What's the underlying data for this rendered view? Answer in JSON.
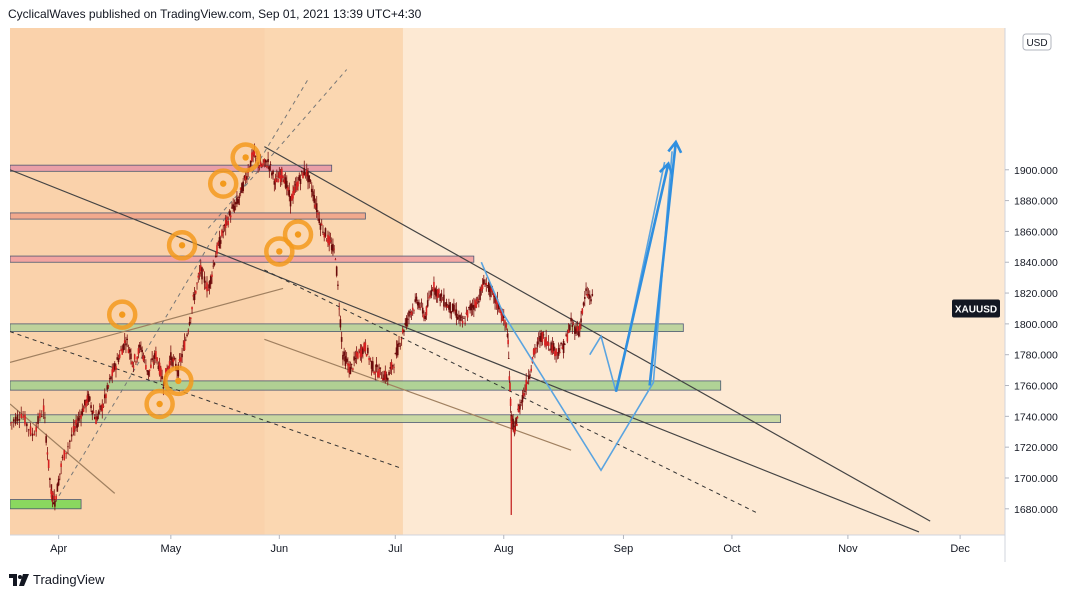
{
  "header": {
    "publisher": "CyclicalWaves",
    "published_on": "published on TradingView.com, Sep 01, 2021 13:39 UTC+4:30"
  },
  "footer": {
    "brand": "TradingView"
  },
  "chart_data": {
    "type": "candlestick",
    "symbol": "XAUUSD",
    "currency": "USD",
    "ylim": [
      1663,
      1992
    ],
    "y_ticks": [
      1680,
      1700,
      1720,
      1740,
      1760,
      1780,
      1800,
      1820,
      1840,
      1860,
      1880,
      1900
    ],
    "y_tick_labels": [
      "1680.000",
      "1700.000",
      "1720.000",
      "1740.000",
      "1760.000",
      "1780.000",
      "1800.000",
      "1820.000",
      "1840.000",
      "1860.000",
      "1880.000",
      "1900.000"
    ],
    "x_tick_labels": [
      "Apr",
      "May",
      "Jun",
      "Jul",
      "Aug",
      "Sep",
      "Oct",
      "Nov",
      "Dec"
    ],
    "x_tick_days": [
      13,
      43,
      72,
      103,
      132,
      164,
      193,
      224,
      254
    ],
    "x_range_days": [
      0,
      266
    ],
    "price_path": [
      [
        0,
        1735
      ],
      [
        3,
        1742
      ],
      [
        6,
        1728
      ],
      [
        9,
        1745
      ],
      [
        11,
        1690
      ],
      [
        12,
        1685
      ],
      [
        14,
        1712
      ],
      [
        17,
        1730
      ],
      [
        19,
        1742
      ],
      [
        21,
        1752
      ],
      [
        23,
        1738
      ],
      [
        25,
        1748
      ],
      [
        27,
        1765
      ],
      [
        29,
        1778
      ],
      [
        31,
        1790
      ],
      [
        33,
        1775
      ],
      [
        35,
        1785
      ],
      [
        37,
        1768
      ],
      [
        39,
        1780
      ],
      [
        41,
        1762
      ],
      [
        43,
        1778
      ],
      [
        45,
        1770
      ],
      [
        47,
        1790
      ],
      [
        49,
        1815
      ],
      [
        51,
        1835
      ],
      [
        53,
        1822
      ],
      [
        55,
        1845
      ],
      [
        57,
        1860
      ],
      [
        59,
        1872
      ],
      [
        61,
        1880
      ],
      [
        63,
        1895
      ],
      [
        65,
        1910
      ],
      [
        67,
        1902
      ],
      [
        69,
        1905
      ],
      [
        71,
        1892
      ],
      [
        73,
        1898
      ],
      [
        75,
        1880
      ],
      [
        77,
        1892
      ],
      [
        79,
        1900
      ],
      [
        81,
        1885
      ],
      [
        83,
        1865
      ],
      [
        85,
        1855
      ],
      [
        87,
        1845
      ],
      [
        89,
        1780
      ],
      [
        91,
        1770
      ],
      [
        93,
        1780
      ],
      [
        95,
        1785
      ],
      [
        97,
        1772
      ],
      [
        99,
        1768
      ],
      [
        101,
        1765
      ],
      [
        103,
        1778
      ],
      [
        105,
        1795
      ],
      [
        107,
        1808
      ],
      [
        109,
        1815
      ],
      [
        111,
        1805
      ],
      [
        113,
        1825
      ],
      [
        115,
        1818
      ],
      [
        117,
        1812
      ],
      [
        119,
        1808
      ],
      [
        121,
        1800
      ],
      [
        123,
        1810
      ],
      [
        125,
        1815
      ],
      [
        127,
        1828
      ],
      [
        129,
        1818
      ],
      [
        131,
        1810
      ],
      [
        133,
        1795
      ],
      [
        134,
        1740
      ],
      [
        135,
        1730
      ],
      [
        136,
        1745
      ],
      [
        138,
        1760
      ],
      [
        140,
        1780
      ],
      [
        142,
        1792
      ],
      [
        144,
        1788
      ],
      [
        146,
        1782
      ],
      [
        148,
        1785
      ],
      [
        150,
        1800
      ],
      [
        152,
        1795
      ],
      [
        154,
        1820
      ],
      [
        156,
        1815
      ]
    ],
    "projection_path": [
      [
        155,
        1780
      ],
      [
        158,
        1792
      ],
      [
        162,
        1756
      ],
      [
        166,
        1800
      ],
      [
        175,
        1905
      ]
    ],
    "projection_alt_path": [
      [
        126,
        1840
      ],
      [
        132,
        1806
      ],
      [
        158,
        1705
      ],
      [
        172,
        1762
      ],
      [
        177,
        1912
      ]
    ],
    "horizontal_zones": [
      {
        "start": 0,
        "end": 86,
        "low": 1899,
        "high": 1903,
        "color": "#e89aa8"
      },
      {
        "start": 0,
        "end": 95,
        "low": 1868,
        "high": 1872,
        "color": "#f2a58a"
      },
      {
        "start": 0,
        "end": 124,
        "low": 1840,
        "high": 1844,
        "color": "#f2a0a0"
      },
      {
        "start": 0,
        "end": 180,
        "low": 1795,
        "high": 1800,
        "color": "#b8d29a"
      },
      {
        "start": 0,
        "end": 190,
        "low": 1757,
        "high": 1763,
        "color": "#a8d090"
      },
      {
        "start": 0,
        "end": 206,
        "low": 1736,
        "high": 1741,
        "color": "#c4d8a0"
      },
      {
        "start": 0,
        "end": 19,
        "low": 1680,
        "high": 1686,
        "color": "#7ed957"
      }
    ],
    "shaded_regions": [
      {
        "start": 0,
        "end": 105,
        "color": "#f8c89a"
      },
      {
        "start": 68,
        "end": 105,
        "color": "#fbd8b4"
      }
    ],
    "trend_lines": [
      {
        "p1": [
          0,
          1900
        ],
        "p2": [
          243,
          1665
        ],
        "color": "#444444",
        "dash": false
      },
      {
        "p1": [
          68,
          1915
        ],
        "p2": [
          246,
          1672
        ],
        "color": "#444444",
        "dash": false
      },
      {
        "p1": [
          0,
          1795
        ],
        "p2": [
          105,
          1706
        ],
        "color": "#333333",
        "dash": true
      },
      {
        "p1": [
          68,
          1835
        ],
        "p2": [
          200,
          1677
        ],
        "color": "#333333",
        "dash": true
      },
      {
        "p1": [
          0,
          1775
        ],
        "p2": [
          73,
          1823
        ],
        "color": "#a08060",
        "dash": false
      },
      {
        "p1": [
          0,
          1748
        ],
        "p2": [
          28,
          1690
        ],
        "color": "#a08060",
        "dash": false
      },
      {
        "p1": [
          12,
          1684
        ],
        "p2": [
          80,
          1960
        ],
        "color": "#777777",
        "dash": true
      },
      {
        "p1": [
          53,
          1862
        ],
        "p2": [
          90,
          1965
        ],
        "color": "#777777",
        "dash": true
      },
      {
        "p1": [
          68,
          1790
        ],
        "p2": [
          150,
          1718
        ],
        "color": "#a08060",
        "dash": false
      }
    ],
    "cycle_markers": [
      {
        "day": 30,
        "price": 1806
      },
      {
        "day": 46,
        "price": 1851
      },
      {
        "day": 57,
        "price": 1891
      },
      {
        "day": 63,
        "price": 1908
      },
      {
        "day": 45,
        "price": 1763
      },
      {
        "day": 40,
        "price": 1748
      },
      {
        "day": 72,
        "price": 1847
      },
      {
        "day": 77,
        "price": 1858
      }
    ],
    "current_price_label": "XAUUSD",
    "current_price_level": 1810
  }
}
